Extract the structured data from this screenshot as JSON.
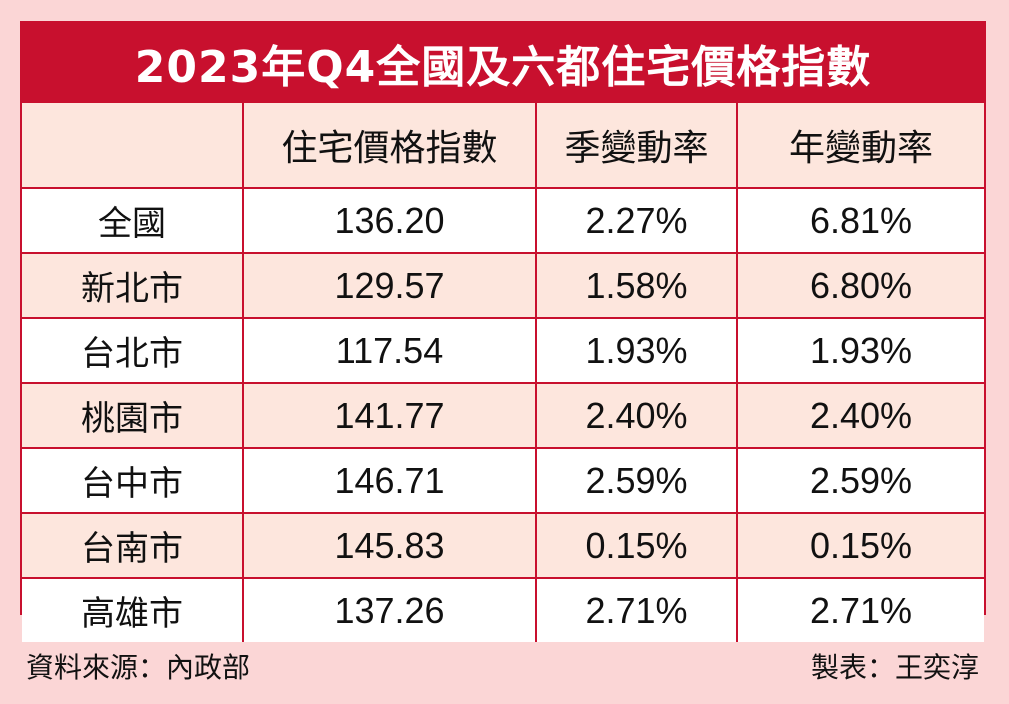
{
  "chart_data": {
    "type": "table",
    "title": "2023年Q4全國及六都住宅價格指數",
    "columns": [
      "",
      "住宅價格指數",
      "季變動率",
      "年變動率"
    ],
    "rows": [
      {
        "region": "全國",
        "index": "136.20",
        "qoq": "2.27%",
        "yoy": "6.81%"
      },
      {
        "region": "新北市",
        "index": "129.57",
        "qoq": "1.58%",
        "yoy": "6.80%"
      },
      {
        "region": "台北市",
        "index": "117.54",
        "qoq": "1.93%",
        "yoy": "1.93%"
      },
      {
        "region": "桃園市",
        "index": "141.77",
        "qoq": "2.40%",
        "yoy": "2.40%"
      },
      {
        "region": "台中市",
        "index": "146.71",
        "qoq": "2.59%",
        "yoy": "2.59%"
      },
      {
        "region": "台南市",
        "index": "145.83",
        "qoq": "0.15%",
        "yoy": "0.15%"
      },
      {
        "region": "高雄市",
        "index": "137.26",
        "qoq": "2.71%",
        "yoy": "2.71%"
      }
    ]
  },
  "footer": {
    "source": "資料來源：內政部",
    "maker": "製表：王奕淳"
  },
  "colors": {
    "accent": "#c8102e",
    "background": "#fbd6d6",
    "row_alt": "#fde6dd"
  }
}
